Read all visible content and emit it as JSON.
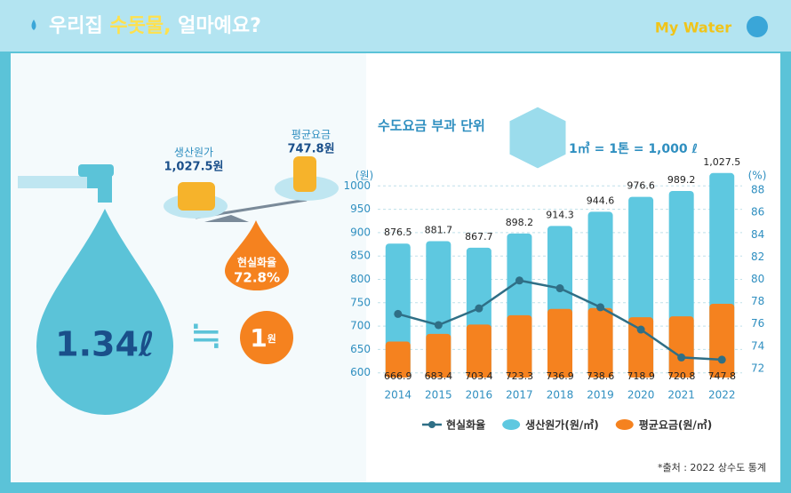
{
  "header": {
    "title_parts": [
      "우리집 ",
      "수돗물,",
      " 얼마예요?"
    ],
    "logo": "My Water"
  },
  "illustration": {
    "cost_label": "생산원가",
    "cost_value": "1,027.5원",
    "fee_label": "평균요금",
    "fee_value": "747.8원",
    "ratio_label": "현실화율",
    "ratio_value": "72.8%",
    "volume": "1.34ℓ",
    "approx": "≒",
    "price_value": "1",
    "price_unit": "원"
  },
  "chart_data": {
    "type": "bar",
    "title": "수도요금 부과 단위",
    "subtitle": "1㎥ = 1톤 = 1,000 ℓ",
    "ylabel": "(원)",
    "y2label": "(%)",
    "categories": [
      "2014",
      "2015",
      "2016",
      "2017",
      "2018",
      "2019",
      "2020",
      "2021",
      "2022"
    ],
    "series": [
      {
        "name": "생산원가(원/㎥)",
        "color": "#5ec8e0",
        "values": [
          876.5,
          881.7,
          867.7,
          898.2,
          914.3,
          944.6,
          976.6,
          989.2,
          1027.5
        ],
        "value_labels": [
          "876.5",
          "881.7",
          "867.7",
          "898.2",
          "914.3",
          "944.6",
          "976.6",
          "989.2",
          "1,027.5"
        ]
      },
      {
        "name": "평균요금(원/㎥)",
        "color": "#f5821f",
        "values": [
          666.9,
          683.4,
          703.4,
          723.3,
          736.9,
          738.6,
          718.9,
          720.8,
          747.8
        ]
      },
      {
        "name": "현실화율",
        "type": "line",
        "axis": "y2",
        "color": "#2f6f86",
        "values": [
          76.9,
          75.9,
          77.4,
          79.9,
          79.2,
          77.5,
          75.5,
          73.0,
          72.8
        ]
      }
    ],
    "ylim": [
      590,
      1010
    ],
    "yticks": [
      600,
      650,
      700,
      750,
      800,
      850,
      900,
      950,
      1000
    ],
    "y2lim": [
      71.2,
      88.8
    ],
    "y2ticks": [
      72,
      74,
      76,
      78,
      80,
      82,
      84,
      86,
      88
    ],
    "grid": true,
    "legend": "bottom",
    "source": "*출처 : 2022 상수도 통계"
  }
}
